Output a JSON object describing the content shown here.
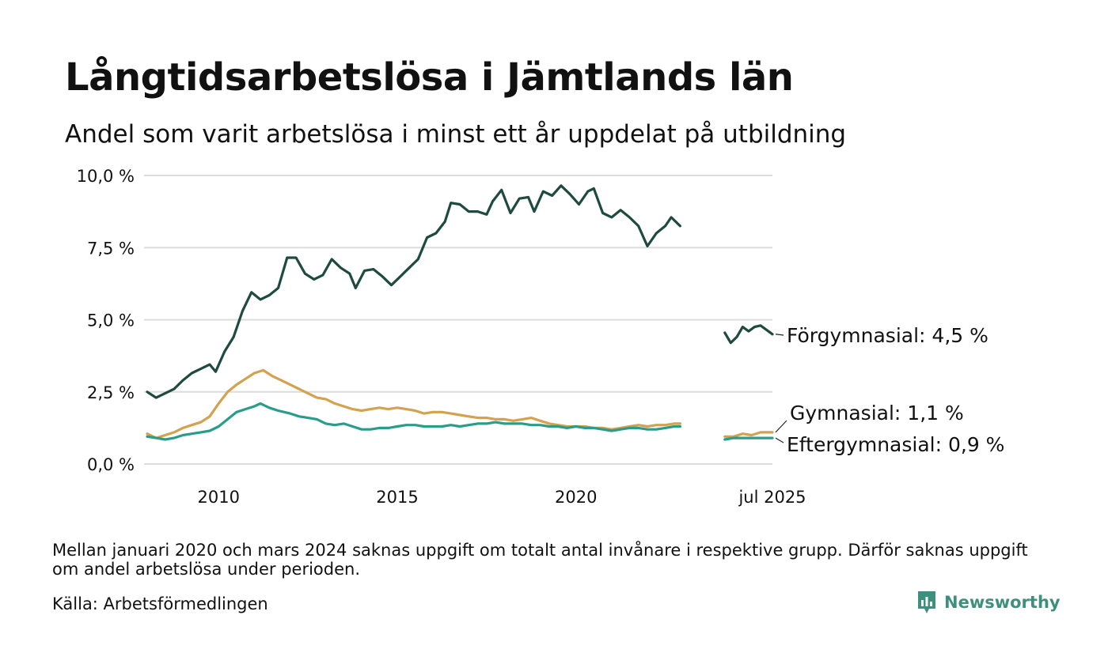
{
  "title": "Långtidsarbetslösa i Jämtlands län",
  "subtitle": "Andel som varit arbetslösa i minst ett år uppdelat på utbildning",
  "note": "Mellan januari 2020 och mars 2024 saknas uppgift om totalt antal invånare i respektive grupp. Därför saknas uppgift om andel arbetslösa under perioden.",
  "source": "Källa: Arbetsförmedlingen",
  "brand": {
    "name": "Newsworthy",
    "icon": "newsworthy-chart-logo-icon",
    "color": "#3d8f7e"
  },
  "chart_data": {
    "type": "line",
    "y_tick_labels": [
      "0,0 %",
      "2,5 %",
      "5,0 %",
      "7,5 %",
      "10,0 %"
    ],
    "y_ticks": [
      0,
      2.5,
      5,
      7.5,
      10
    ],
    "ylim": [
      0,
      10
    ],
    "x_tick_labels": [
      "2010",
      "2015",
      "2020",
      "jul 2025"
    ],
    "x_ticks": [
      "2010-01",
      "2015-01",
      "2020-01",
      "2025-07"
    ],
    "xlim": [
      "2008-01",
      "2025-07"
    ],
    "grid": "horizontal",
    "series": [
      {
        "name": "Förgymnasial",
        "label": "Förgymnasial: 4,5 %",
        "color": "#1f4a40",
        "segments": [
          [
            [
              "2008-01",
              2.5
            ],
            [
              "2008-04",
              2.3
            ],
            [
              "2008-07",
              2.45
            ],
            [
              "2008-10",
              2.6
            ],
            [
              "2009-01",
              2.9
            ],
            [
              "2009-04",
              3.15
            ],
            [
              "2009-07",
              3.3
            ],
            [
              "2009-10",
              3.45
            ],
            [
              "2009-12",
              3.2
            ],
            [
              "2010-03",
              3.9
            ],
            [
              "2010-06",
              4.4
            ],
            [
              "2010-09",
              5.3
            ],
            [
              "2010-12",
              5.95
            ],
            [
              "2011-03",
              5.7
            ],
            [
              "2011-06",
              5.85
            ],
            [
              "2011-09",
              6.1
            ],
            [
              "2011-12",
              7.15
            ],
            [
              "2012-03",
              7.15
            ],
            [
              "2012-06",
              6.6
            ],
            [
              "2012-09",
              6.4
            ],
            [
              "2012-12",
              6.55
            ],
            [
              "2013-03",
              7.1
            ],
            [
              "2013-06",
              6.8
            ],
            [
              "2013-09",
              6.6
            ],
            [
              "2013-11",
              6.1
            ],
            [
              "2014-02",
              6.7
            ],
            [
              "2014-05",
              6.75
            ],
            [
              "2014-08",
              6.5
            ],
            [
              "2014-11",
              6.2
            ],
            [
              "2015-02",
              6.5
            ],
            [
              "2015-05",
              6.8
            ],
            [
              "2015-08",
              7.1
            ],
            [
              "2015-11",
              7.85
            ],
            [
              "2016-02",
              8.0
            ],
            [
              "2016-05",
              8.4
            ],
            [
              "2016-07",
              9.05
            ],
            [
              "2016-10",
              9.0
            ],
            [
              "2017-01",
              8.75
            ],
            [
              "2017-04",
              8.75
            ],
            [
              "2017-07",
              8.65
            ],
            [
              "2017-09",
              9.1
            ],
            [
              "2017-12",
              9.5
            ],
            [
              "2018-03",
              8.7
            ],
            [
              "2018-06",
              9.2
            ],
            [
              "2018-09",
              9.25
            ],
            [
              "2018-11",
              8.75
            ],
            [
              "2019-02",
              9.45
            ],
            [
              "2019-05",
              9.3
            ],
            [
              "2019-08",
              9.65
            ],
            [
              "2019-11",
              9.35
            ],
            [
              "2020-02",
              9.0
            ],
            [
              "2020-05",
              9.45
            ],
            [
              "2020-07",
              9.55
            ],
            [
              "2020-10",
              8.7
            ],
            [
              "2021-01",
              8.55
            ],
            [
              "2021-04",
              8.8
            ],
            [
              "2021-07",
              8.55
            ],
            [
              "2021-10",
              8.25
            ],
            [
              "2022-01",
              7.55
            ],
            [
              "2022-04",
              8.0
            ],
            [
              "2022-07",
              8.25
            ],
            [
              "2022-09",
              8.55
            ],
            [
              "2022-12",
              8.25
            ]
          ],
          [
            [
              "2024-03",
              4.55
            ],
            [
              "2024-05",
              4.2
            ],
            [
              "2024-07",
              4.4
            ],
            [
              "2024-09",
              4.75
            ],
            [
              "2024-11",
              4.6
            ],
            [
              "2025-01",
              4.75
            ],
            [
              "2025-03",
              4.8
            ],
            [
              "2025-05",
              4.65
            ],
            [
              "2025-07",
              4.5
            ]
          ]
        ]
      },
      {
        "name": "Gymnasial",
        "label": "Gymnasial: 1,1 %",
        "color": "#d4a24e",
        "segments": [
          [
            [
              "2008-01",
              1.05
            ],
            [
              "2008-04",
              0.9
            ],
            [
              "2008-07",
              1.0
            ],
            [
              "2008-10",
              1.1
            ],
            [
              "2009-01",
              1.25
            ],
            [
              "2009-04",
              1.35
            ],
            [
              "2009-07",
              1.45
            ],
            [
              "2009-10",
              1.65
            ],
            [
              "2010-01",
              2.1
            ],
            [
              "2010-04",
              2.5
            ],
            [
              "2010-07",
              2.75
            ],
            [
              "2010-10",
              2.95
            ],
            [
              "2011-01",
              3.15
            ],
            [
              "2011-04",
              3.25
            ],
            [
              "2011-07",
              3.05
            ],
            [
              "2011-10",
              2.9
            ],
            [
              "2012-01",
              2.75
            ],
            [
              "2012-04",
              2.6
            ],
            [
              "2012-07",
              2.45
            ],
            [
              "2012-10",
              2.3
            ],
            [
              "2013-01",
              2.25
            ],
            [
              "2013-04",
              2.1
            ],
            [
              "2013-07",
              2.0
            ],
            [
              "2013-10",
              1.9
            ],
            [
              "2014-01",
              1.85
            ],
            [
              "2014-04",
              1.9
            ],
            [
              "2014-07",
              1.95
            ],
            [
              "2014-10",
              1.9
            ],
            [
              "2015-01",
              1.95
            ],
            [
              "2015-04",
              1.9
            ],
            [
              "2015-07",
              1.85
            ],
            [
              "2015-10",
              1.75
            ],
            [
              "2016-01",
              1.8
            ],
            [
              "2016-04",
              1.8
            ],
            [
              "2016-07",
              1.75
            ],
            [
              "2016-10",
              1.7
            ],
            [
              "2017-01",
              1.65
            ],
            [
              "2017-04",
              1.6
            ],
            [
              "2017-07",
              1.6
            ],
            [
              "2017-10",
              1.55
            ],
            [
              "2018-01",
              1.55
            ],
            [
              "2018-04",
              1.5
            ],
            [
              "2018-07",
              1.55
            ],
            [
              "2018-10",
              1.6
            ],
            [
              "2019-01",
              1.5
            ],
            [
              "2019-04",
              1.4
            ],
            [
              "2019-07",
              1.35
            ],
            [
              "2019-10",
              1.3
            ],
            [
              "2020-01",
              1.3
            ],
            [
              "2020-04",
              1.3
            ],
            [
              "2020-07",
              1.25
            ],
            [
              "2020-10",
              1.25
            ],
            [
              "2021-01",
              1.2
            ],
            [
              "2021-04",
              1.25
            ],
            [
              "2021-07",
              1.3
            ],
            [
              "2021-10",
              1.35
            ],
            [
              "2022-01",
              1.3
            ],
            [
              "2022-04",
              1.35
            ],
            [
              "2022-07",
              1.35
            ],
            [
              "2022-10",
              1.4
            ],
            [
              "2022-12",
              1.4
            ]
          ],
          [
            [
              "2024-03",
              0.95
            ],
            [
              "2024-06",
              0.95
            ],
            [
              "2024-09",
              1.05
            ],
            [
              "2024-12",
              1.0
            ],
            [
              "2025-03",
              1.1
            ],
            [
              "2025-07",
              1.1
            ]
          ]
        ]
      },
      {
        "name": "Eftergymnasial",
        "label": "Eftergymnasial: 0,9 %",
        "color": "#2a9d8a",
        "segments": [
          [
            [
              "2008-01",
              0.95
            ],
            [
              "2008-04",
              0.9
            ],
            [
              "2008-07",
              0.85
            ],
            [
              "2008-10",
              0.9
            ],
            [
              "2009-01",
              1.0
            ],
            [
              "2009-04",
              1.05
            ],
            [
              "2009-07",
              1.1
            ],
            [
              "2009-10",
              1.15
            ],
            [
              "2010-01",
              1.3
            ],
            [
              "2010-04",
              1.55
            ],
            [
              "2010-07",
              1.8
            ],
            [
              "2010-10",
              1.9
            ],
            [
              "2011-01",
              2.0
            ],
            [
              "2011-03",
              2.1
            ],
            [
              "2011-06",
              1.95
            ],
            [
              "2011-09",
              1.85
            ],
            [
              "2012-01",
              1.75
            ],
            [
              "2012-04",
              1.65
            ],
            [
              "2012-07",
              1.6
            ],
            [
              "2012-10",
              1.55
            ],
            [
              "2013-01",
              1.4
            ],
            [
              "2013-04",
              1.35
            ],
            [
              "2013-07",
              1.4
            ],
            [
              "2013-10",
              1.3
            ],
            [
              "2014-01",
              1.2
            ],
            [
              "2014-04",
              1.2
            ],
            [
              "2014-07",
              1.25
            ],
            [
              "2014-10",
              1.25
            ],
            [
              "2015-01",
              1.3
            ],
            [
              "2015-04",
              1.35
            ],
            [
              "2015-07",
              1.35
            ],
            [
              "2015-10",
              1.3
            ],
            [
              "2016-01",
              1.3
            ],
            [
              "2016-04",
              1.3
            ],
            [
              "2016-07",
              1.35
            ],
            [
              "2016-10",
              1.3
            ],
            [
              "2017-01",
              1.35
            ],
            [
              "2017-04",
              1.4
            ],
            [
              "2017-07",
              1.4
            ],
            [
              "2017-10",
              1.45
            ],
            [
              "2018-01",
              1.4
            ],
            [
              "2018-04",
              1.4
            ],
            [
              "2018-07",
              1.4
            ],
            [
              "2018-10",
              1.35
            ],
            [
              "2019-01",
              1.35
            ],
            [
              "2019-04",
              1.3
            ],
            [
              "2019-07",
              1.3
            ],
            [
              "2019-10",
              1.25
            ],
            [
              "2020-01",
              1.3
            ],
            [
              "2020-04",
              1.25
            ],
            [
              "2020-07",
              1.25
            ],
            [
              "2020-10",
              1.2
            ],
            [
              "2021-01",
              1.15
            ],
            [
              "2021-04",
              1.2
            ],
            [
              "2021-07",
              1.25
            ],
            [
              "2021-10",
              1.25
            ],
            [
              "2022-01",
              1.2
            ],
            [
              "2022-04",
              1.2
            ],
            [
              "2022-07",
              1.25
            ],
            [
              "2022-10",
              1.3
            ],
            [
              "2022-12",
              1.3
            ]
          ],
          [
            [
              "2024-03",
              0.85
            ],
            [
              "2024-06",
              0.9
            ],
            [
              "2024-09",
              0.9
            ],
            [
              "2024-12",
              0.9
            ],
            [
              "2025-03",
              0.9
            ],
            [
              "2025-07",
              0.9
            ]
          ]
        ]
      }
    ]
  }
}
